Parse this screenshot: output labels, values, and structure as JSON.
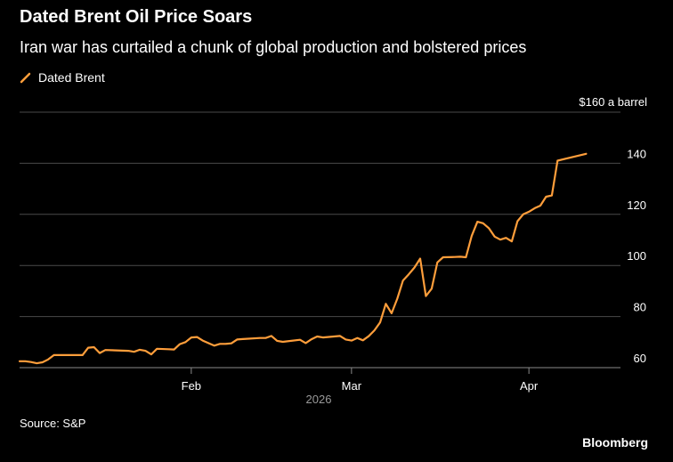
{
  "chart_data": {
    "type": "line",
    "title": "Dated Brent Oil Price Soars",
    "subtitle": "Iran war has curtailed a chunk of global production and bolstered prices",
    "ylabel": "$160 a barrel",
    "ylim": [
      60,
      160
    ],
    "yticks": [
      60,
      80,
      100,
      120,
      140
    ],
    "xlim": [
      "2026-01-02",
      "2026-04-17"
    ],
    "xticks": [
      {
        "date": "2026-02-01",
        "label": "Feb"
      },
      {
        "date": "2026-03-01",
        "label": "Mar"
      },
      {
        "date": "2026-04-01",
        "label": "Apr"
      }
    ],
    "year_label": "2026",
    "grid": true,
    "legend_position": "top-left",
    "series": [
      {
        "name": "Dated Brent",
        "color": "#ff9e3b",
        "points": [
          [
            "2026-01-02",
            62.5
          ],
          [
            "2026-01-03",
            62.5
          ],
          [
            "2026-01-04",
            62.2
          ],
          [
            "2026-01-05",
            61.7
          ],
          [
            "2026-01-06",
            62.1
          ],
          [
            "2026-01-07",
            63.2
          ],
          [
            "2026-01-08",
            64.9
          ],
          [
            "2026-01-09",
            64.9
          ],
          [
            "2026-01-12",
            64.9
          ],
          [
            "2026-01-13",
            64.9
          ],
          [
            "2026-01-14",
            67.8
          ],
          [
            "2026-01-15",
            68.0
          ],
          [
            "2026-01-16",
            65.7
          ],
          [
            "2026-01-17",
            66.9
          ],
          [
            "2026-01-21",
            66.6
          ],
          [
            "2026-01-22",
            66.2
          ],
          [
            "2026-01-23",
            67.0
          ],
          [
            "2026-01-24",
            66.6
          ],
          [
            "2026-01-25",
            65.2
          ],
          [
            "2026-01-26",
            67.4
          ],
          [
            "2026-01-28",
            67.2
          ],
          [
            "2026-01-29",
            67.1
          ],
          [
            "2026-01-30",
            69.2
          ],
          [
            "2026-01-31",
            70.0
          ],
          [
            "2026-02-01",
            71.8
          ],
          [
            "2026-02-02",
            72.0
          ],
          [
            "2026-02-03",
            70.6
          ],
          [
            "2026-02-05",
            68.6
          ],
          [
            "2026-02-06",
            69.3
          ],
          [
            "2026-02-07",
            69.3
          ],
          [
            "2026-02-08",
            69.5
          ],
          [
            "2026-02-09",
            71.0
          ],
          [
            "2026-02-10",
            71.2
          ],
          [
            "2026-02-13",
            71.6
          ],
          [
            "2026-02-14",
            71.6
          ],
          [
            "2026-02-15",
            72.4
          ],
          [
            "2026-02-16",
            70.5
          ],
          [
            "2026-02-17",
            70.1
          ],
          [
            "2026-02-20",
            70.9
          ],
          [
            "2026-02-21",
            69.6
          ],
          [
            "2026-02-22",
            71.1
          ],
          [
            "2026-02-23",
            72.2
          ],
          [
            "2026-02-24",
            71.8
          ],
          [
            "2026-02-27",
            72.4
          ],
          [
            "2026-02-28",
            71.0
          ],
          [
            "2026-03-01",
            70.6
          ],
          [
            "2026-03-02",
            71.6
          ],
          [
            "2026-03-03",
            70.7
          ],
          [
            "2026-03-04",
            72.3
          ],
          [
            "2026-03-05",
            74.6
          ],
          [
            "2026-03-06",
            77.7
          ],
          [
            "2026-03-07",
            85.0
          ],
          [
            "2026-03-08",
            81.3
          ],
          [
            "2026-03-09",
            87.0
          ],
          [
            "2026-03-10",
            94.1
          ],
          [
            "2026-03-11",
            96.5
          ],
          [
            "2026-03-12",
            99.2
          ],
          [
            "2026-03-13",
            102.7
          ],
          [
            "2026-03-14",
            88.0
          ],
          [
            "2026-03-15",
            90.9
          ],
          [
            "2026-03-16",
            101.2
          ],
          [
            "2026-03-17",
            103.2
          ],
          [
            "2026-03-19",
            103.3
          ],
          [
            "2026-03-20",
            103.4
          ],
          [
            "2026-03-21",
            103.2
          ],
          [
            "2026-03-22",
            111.6
          ],
          [
            "2026-03-23",
            117.1
          ],
          [
            "2026-03-24",
            116.5
          ],
          [
            "2026-03-25",
            114.6
          ],
          [
            "2026-03-26",
            111.3
          ],
          [
            "2026-03-27",
            110.1
          ],
          [
            "2026-03-28",
            110.8
          ],
          [
            "2026-03-29",
            109.4
          ],
          [
            "2026-03-30",
            117.3
          ],
          [
            "2026-03-31",
            120.0
          ],
          [
            "2026-04-01",
            121.0
          ],
          [
            "2026-04-02",
            122.4
          ],
          [
            "2026-04-03",
            123.4
          ],
          [
            "2026-04-04",
            126.9
          ],
          [
            "2026-04-05",
            127.4
          ],
          [
            "2026-04-06",
            141.0
          ],
          [
            "2026-04-11",
            143.7
          ]
        ]
      }
    ]
  },
  "source": "Source: S&P",
  "brand": "Bloomberg"
}
